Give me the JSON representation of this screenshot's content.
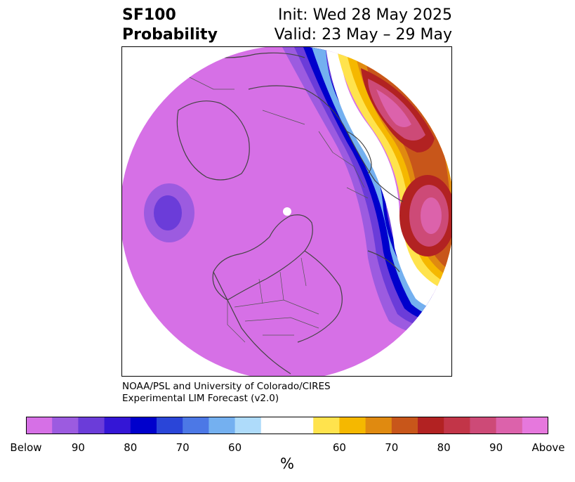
{
  "title": {
    "left_line1": "SF100",
    "left_line2": "Probability",
    "right_line1": "Init: Wed 28 May 2025",
    "right_line2": "Valid: 23 May – 29 May"
  },
  "credit": {
    "line1": "NOAA/PSL and University of Colorado/CIRES",
    "line2": "Experimental LIM Forecast (v2.0)"
  },
  "colorbar": {
    "unit": "%",
    "colors": [
      "#d670e6",
      "#9c5be0",
      "#6b3cd9",
      "#3416d6",
      "#0000cc",
      "#2a45d8",
      "#4c78e6",
      "#74b0f0",
      "#aedbfa",
      "#ffffff",
      "#ffffff",
      "#ffe34d",
      "#f5b800",
      "#e08a10",
      "#c8561a",
      "#b22222",
      "#c23548",
      "#cd4a77",
      "#dc62ab",
      "#e678dd"
    ],
    "tick_labels": [
      "Below",
      "90",
      "80",
      "70",
      "60",
      "60",
      "70",
      "80",
      "90",
      "Above"
    ],
    "tick_bins": [
      0,
      2,
      4,
      6,
      8,
      12,
      14,
      16,
      18,
      20
    ]
  },
  "map": {
    "projection": "north-polar-stereographic",
    "background_color": "#d670e6",
    "land_outline_color": "#444444"
  }
}
